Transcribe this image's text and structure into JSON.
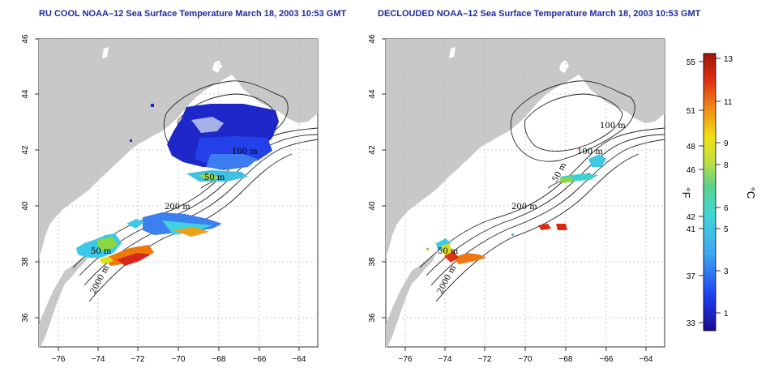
{
  "panels": [
    {
      "title": "RU COOL NOAA–12 Sea Surface Temperature March 18, 2003 10:53 GMT",
      "contour_labels": [
        "100 m",
        "50 m",
        "200 m",
        "50 m",
        "2000 m"
      ]
    },
    {
      "title": "DECLOUDED NOAA–12 Sea Surface Temperature March 18, 2003 10:53 GMT",
      "contour_labels": [
        "100 m",
        "100 m",
        "50 m",
        "200 m",
        "50 m",
        "2000 m"
      ]
    }
  ],
  "axes": {
    "x_ticks": [
      "−76",
      "−74",
      "−72",
      "−70",
      "−68",
      "−66",
      "−64"
    ],
    "y_ticks": [
      "36",
      "38",
      "40",
      "42",
      "44",
      "46"
    ],
    "lon_range": [
      -77.0,
      -63.0
    ],
    "lat_range": [
      35.0,
      46.0
    ],
    "grid": "dotted"
  },
  "colorbar": {
    "fahrenheit_ticks": [
      "55",
      "51",
      "48",
      "46",
      "42",
      "41",
      "37",
      "33"
    ],
    "celsius_ticks": [
      "13",
      "11",
      "9",
      "8",
      "6",
      "5",
      "3",
      "1"
    ],
    "unit_f": "°F",
    "unit_c": "°C",
    "range_c": [
      0.5,
      13.0
    ]
  },
  "colors": {
    "land": "#c8c8c8",
    "title": "#1e2b9a",
    "grid": "#c0c0c0"
  }
}
